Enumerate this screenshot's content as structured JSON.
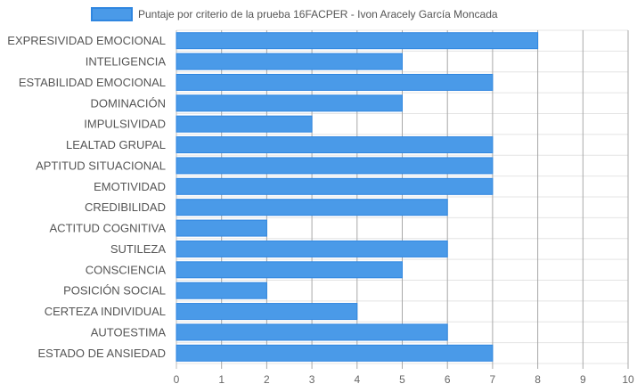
{
  "chart_data": {
    "type": "bar",
    "orientation": "horizontal",
    "categories": [
      "EXPRESIVIDAD EMOCIONAL",
      "INTELIGENCIA",
      "ESTABILIDAD EMOCIONAL",
      "DOMINACIÓN",
      "IMPULSIVIDAD",
      "LEALTAD GRUPAL",
      "APTITUD SITUACIONAL",
      "EMOTIVIDAD",
      "CREDIBILIDAD",
      "ACTITUD COGNITIVA",
      "SUTILEZA",
      "CONSCIENCIA",
      "POSICIÓN SOCIAL",
      "CERTEZA INDIVIDUAL",
      "AUTOESTIMA",
      "ESTADO DE ANSIEDAD"
    ],
    "series": [
      {
        "name": "Puntaje por criterio de la prueba 16FACPER - Ivon Aracely García Moncada",
        "values": [
          8,
          5,
          7,
          5,
          3,
          7,
          7,
          7,
          6,
          2,
          6,
          5,
          2,
          4,
          6,
          7
        ]
      }
    ],
    "xlim": [
      0,
      10
    ],
    "x_ticks": [
      "0",
      "1",
      "2",
      "3",
      "4",
      "5",
      "6",
      "7",
      "8",
      "9",
      "10"
    ],
    "grid": true,
    "legend_position": "top",
    "colors": {
      "bar_fill": "#4a9ae8",
      "bar_border": "#2f86e0",
      "grid": "#e4e4e4",
      "grid_dark": "#a8a8a8"
    }
  }
}
